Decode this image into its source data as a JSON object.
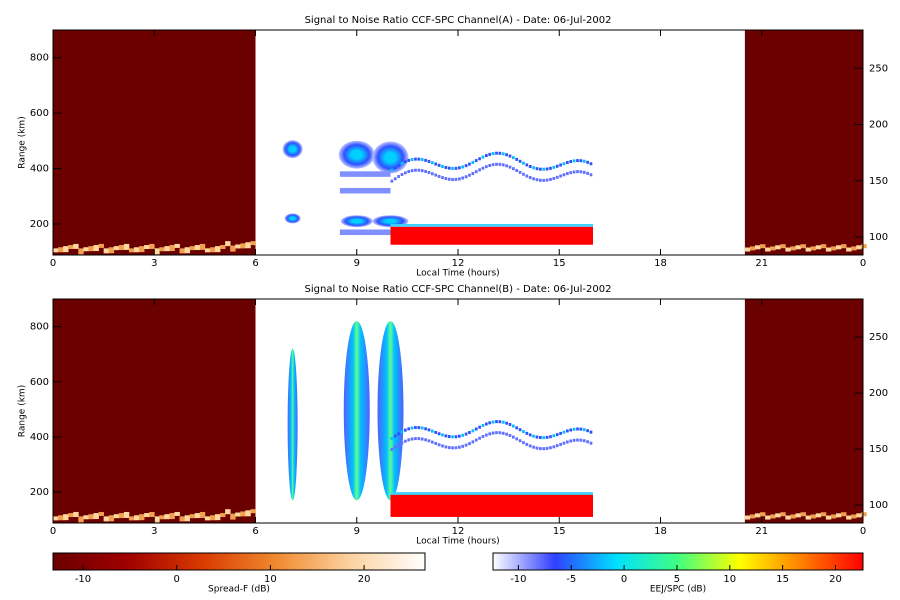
{
  "chart_data": [
    {
      "type": "heatmap",
      "title": "Signal to Noise Ratio CCF-SPC Channel(A) - Date: 06-Jul-2002",
      "xlabel": "Local Time (hours)",
      "ylabel": "Range (km)",
      "xlim": [
        0,
        24
      ],
      "xticks": [
        0,
        3,
        6,
        9,
        12,
        15,
        18,
        21,
        {
          "value": 24,
          "label": "0"
        }
      ],
      "ylim": [
        88,
        900
      ],
      "yticks": [
        200,
        400,
        600,
        800
      ],
      "y2lim": [
        84,
        284
      ],
      "y2ticks": [
        100,
        150,
        200,
        250
      ]
    },
    {
      "type": "heatmap",
      "title": "Signal to Noise Ratio CCF-SPC Channel(B) - Date: 06-Jul-2002",
      "xlabel": "Local Time (hours)",
      "ylabel": "Range (km)",
      "xlim": [
        0,
        24
      ],
      "xticks": [
        0,
        3,
        6,
        9,
        12,
        15,
        18,
        21,
        {
          "value": 24,
          "label": "0"
        }
      ],
      "ylim": [
        88,
        900
      ],
      "yticks": [
        200,
        400,
        600,
        800
      ],
      "y2lim": [
        84,
        284
      ],
      "y2ticks": [
        100,
        150,
        200,
        250
      ]
    }
  ],
  "colorbars": [
    {
      "label": "Spread-F (dB)",
      "lim": [
        -13.2,
        26.5
      ],
      "ticks": [
        -10,
        0,
        10,
        20
      ],
      "colors": [
        "#6b0000",
        "#a00000",
        "#d83a00",
        "#f08a30",
        "#fcd2a0",
        "#ffffff"
      ]
    },
    {
      "label": "EEJ/SPC (dB)",
      "lim": [
        -12.4,
        22.6
      ],
      "ticks": [
        -10,
        -5,
        0,
        5,
        10,
        15,
        20
      ],
      "colors": [
        "#ffffff",
        "#3040ff",
        "#00e0ff",
        "#40ff80",
        "#ffff00",
        "#ff8000",
        "#ff0000"
      ]
    }
  ]
}
